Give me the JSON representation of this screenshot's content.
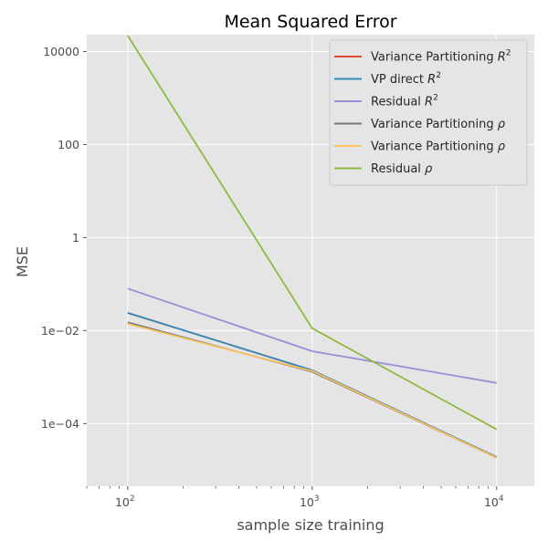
{
  "chart_data": {
    "type": "line",
    "title": "Mean Squared Error",
    "xlabel": "sample size training",
    "ylabel": "MSE",
    "xscale": "log",
    "yscale": "log",
    "xlim": [
      60,
      16000
    ],
    "ylim": [
      4.5e-06,
      23000
    ],
    "grid": true,
    "legend_position": "top-right",
    "background": "#e5e5e5",
    "x": [
      100,
      1000,
      10000
    ],
    "x_ticks": [
      {
        "value": 100,
        "base": "10",
        "exp": "2"
      },
      {
        "value": 1000,
        "base": "10",
        "exp": "3"
      },
      {
        "value": 10000,
        "base": "10",
        "exp": "4"
      }
    ],
    "y_ticks": [
      {
        "value": 10000,
        "label": "10000"
      },
      {
        "value": 100,
        "label": "100"
      },
      {
        "value": 1,
        "label": "1"
      },
      {
        "value": 0.01,
        "label": "1e−02"
      },
      {
        "value": 0.0001,
        "label": "1e−04"
      }
    ],
    "series": [
      {
        "name": "Variance Partitioning",
        "math": "R",
        "sup": "2",
        "color": "#e24a33",
        "values": [
          0.024,
          0.0014,
          1.9e-05
        ]
      },
      {
        "name": "VP direct",
        "math": "R",
        "sup": "2",
        "color": "#348abd",
        "values": [
          0.024,
          0.0014,
          1.9e-05
        ]
      },
      {
        "name": "Residual",
        "math": "R",
        "sup": "2",
        "color": "#988ed5",
        "values": [
          0.08,
          0.0036,
          0.00075
        ]
      },
      {
        "name": "Variance Partitioning",
        "math": "ρ",
        "sup": "",
        "color": "#777777",
        "values": [
          0.015,
          0.0013,
          1.85e-05
        ]
      },
      {
        "name": "Variance Partitioning",
        "math": "ρ",
        "sup": "",
        "color": "#fbc15e",
        "values": [
          0.014,
          0.00135,
          1.85e-05
        ]
      },
      {
        "name": "Residual",
        "math": "ρ",
        "sup": "",
        "color": "#8eba42",
        "values": [
          22000,
          0.0112,
          7.5e-05
        ]
      }
    ]
  }
}
